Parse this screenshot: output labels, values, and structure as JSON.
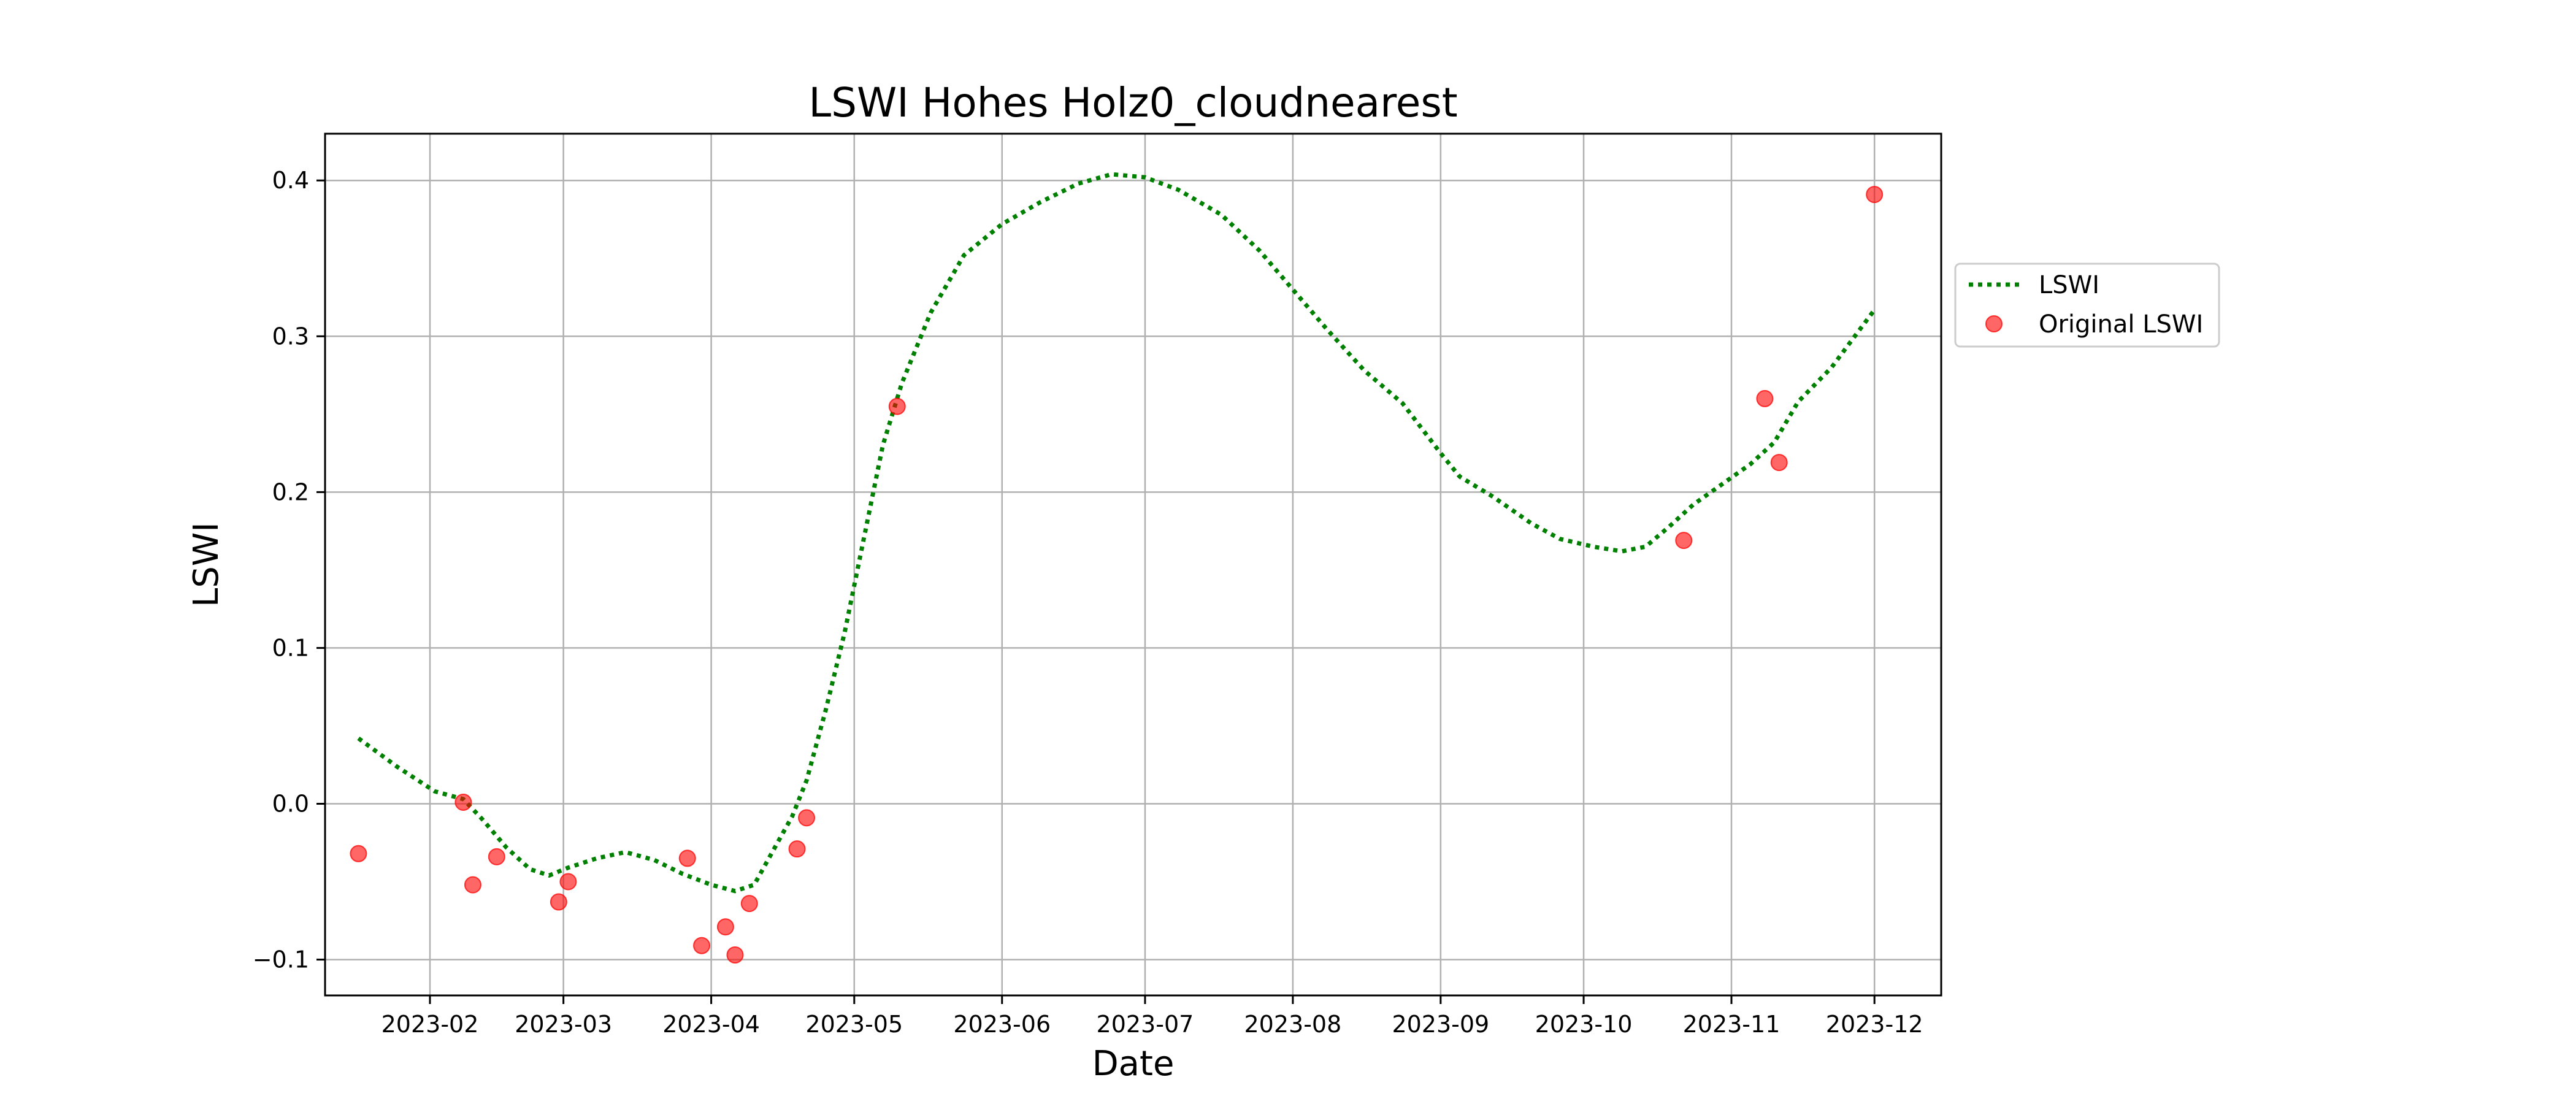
{
  "chart_data": {
    "type": "line",
    "title": "LSWI Hohes Holz0_cloudnearest",
    "xlabel": "Date",
    "ylabel": "LSWI",
    "xlim": [
      "2023-01-10",
      "2023-12-15"
    ],
    "ylim": [
      -0.123,
      0.43
    ],
    "x_ticks": [
      "2023-02-01",
      "2023-03-01",
      "2023-04-01",
      "2023-05-01",
      "2023-06-01",
      "2023-07-01",
      "2023-08-01",
      "2023-09-01",
      "2023-10-01",
      "2023-11-01",
      "2023-12-01"
    ],
    "x_tick_labels": [
      "2023-02",
      "2023-03",
      "2023-04",
      "2023-05",
      "2023-06",
      "2023-07",
      "2023-08",
      "2023-09",
      "2023-10",
      "2023-11",
      "2023-12"
    ],
    "y_ticks": [
      -0.1,
      0.0,
      0.1,
      0.2,
      0.3,
      0.4
    ],
    "y_tick_labels": [
      "−0.1",
      "0.0",
      "0.1",
      "0.2",
      "0.3",
      "0.4"
    ],
    "grid": true,
    "legend_position": "outside-right",
    "series": [
      {
        "name": "LSWI",
        "style": "dotted-line",
        "color": "#008000",
        "points": [
          {
            "x": "2023-01-17",
            "y": 0.042
          },
          {
            "x": "2023-01-25",
            "y": 0.024
          },
          {
            "x": "2023-02-02",
            "y": 0.008
          },
          {
            "x": "2023-02-08",
            "y": 0.003
          },
          {
            "x": "2023-02-12",
            "y": -0.01
          },
          {
            "x": "2023-02-17",
            "y": -0.028
          },
          {
            "x": "2023-02-22",
            "y": -0.042
          },
          {
            "x": "2023-02-26",
            "y": -0.046
          },
          {
            "x": "2023-03-02",
            "y": -0.041
          },
          {
            "x": "2023-03-08",
            "y": -0.035
          },
          {
            "x": "2023-03-14",
            "y": -0.031
          },
          {
            "x": "2023-03-20",
            "y": -0.036
          },
          {
            "x": "2023-03-26",
            "y": -0.045
          },
          {
            "x": "2023-04-01",
            "y": -0.052
          },
          {
            "x": "2023-04-06",
            "y": -0.056
          },
          {
            "x": "2023-04-10",
            "y": -0.052
          },
          {
            "x": "2023-04-14",
            "y": -0.03
          },
          {
            "x": "2023-04-18",
            "y": -0.008
          },
          {
            "x": "2023-04-21",
            "y": 0.015
          },
          {
            "x": "2023-04-25",
            "y": 0.06
          },
          {
            "x": "2023-04-29",
            "y": 0.11
          },
          {
            "x": "2023-05-03",
            "y": 0.17
          },
          {
            "x": "2023-05-07",
            "y": 0.23
          },
          {
            "x": "2023-05-11",
            "y": 0.27
          },
          {
            "x": "2023-05-17",
            "y": 0.315
          },
          {
            "x": "2023-05-24",
            "y": 0.352
          },
          {
            "x": "2023-06-01",
            "y": 0.372
          },
          {
            "x": "2023-06-09",
            "y": 0.386
          },
          {
            "x": "2023-06-17",
            "y": 0.398
          },
          {
            "x": "2023-06-24",
            "y": 0.404
          },
          {
            "x": "2023-07-01",
            "y": 0.402
          },
          {
            "x": "2023-07-08",
            "y": 0.394
          },
          {
            "x": "2023-07-17",
            "y": 0.378
          },
          {
            "x": "2023-07-25",
            "y": 0.355
          },
          {
            "x": "2023-08-01",
            "y": 0.33
          },
          {
            "x": "2023-08-08",
            "y": 0.305
          },
          {
            "x": "2023-08-16",
            "y": 0.278
          },
          {
            "x": "2023-08-24",
            "y": 0.257
          },
          {
            "x": "2023-09-01",
            "y": 0.225
          },
          {
            "x": "2023-09-05",
            "y": 0.21
          },
          {
            "x": "2023-09-12",
            "y": 0.197
          },
          {
            "x": "2023-09-20",
            "y": 0.18
          },
          {
            "x": "2023-09-26",
            "y": 0.17
          },
          {
            "x": "2023-10-03",
            "y": 0.165
          },
          {
            "x": "2023-10-09",
            "y": 0.162
          },
          {
            "x": "2023-10-14",
            "y": 0.165
          },
          {
            "x": "2023-10-19",
            "y": 0.178
          },
          {
            "x": "2023-10-24",
            "y": 0.192
          },
          {
            "x": "2023-10-30",
            "y": 0.205
          },
          {
            "x": "2023-11-05",
            "y": 0.218
          },
          {
            "x": "2023-11-10",
            "y": 0.232
          },
          {
            "x": "2023-11-15",
            "y": 0.258
          },
          {
            "x": "2023-11-22",
            "y": 0.28
          },
          {
            "x": "2023-12-01",
            "y": 0.317
          }
        ]
      },
      {
        "name": "Original LSWI",
        "style": "scatter",
        "color": "#ff0000",
        "points": [
          {
            "x": "2023-01-17",
            "y": -0.032
          },
          {
            "x": "2023-02-08",
            "y": 0.001
          },
          {
            "x": "2023-02-10",
            "y": -0.052
          },
          {
            "x": "2023-02-15",
            "y": -0.034
          },
          {
            "x": "2023-02-28",
            "y": -0.063
          },
          {
            "x": "2023-03-02",
            "y": -0.05
          },
          {
            "x": "2023-03-27",
            "y": -0.035
          },
          {
            "x": "2023-03-30",
            "y": -0.091
          },
          {
            "x": "2023-04-04",
            "y": -0.079
          },
          {
            "x": "2023-04-06",
            "y": -0.097
          },
          {
            "x": "2023-04-09",
            "y": -0.064
          },
          {
            "x": "2023-04-19",
            "y": -0.029
          },
          {
            "x": "2023-04-21",
            "y": -0.009
          },
          {
            "x": "2023-05-10",
            "y": 0.255
          },
          {
            "x": "2023-10-22",
            "y": 0.169
          },
          {
            "x": "2023-11-08",
            "y": 0.26
          },
          {
            "x": "2023-11-11",
            "y": 0.219
          },
          {
            "x": "2023-12-01",
            "y": 0.391
          }
        ]
      }
    ]
  }
}
